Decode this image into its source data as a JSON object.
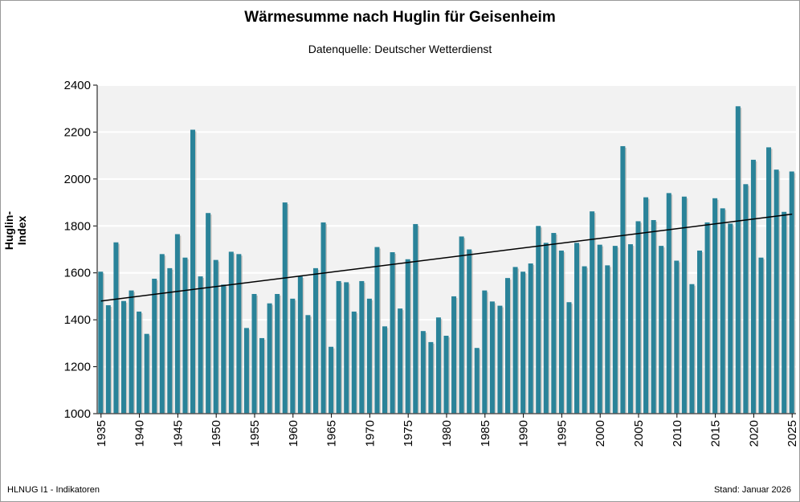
{
  "chart_data": {
    "type": "bar",
    "title": "Wärmesumme nach Huglin für Geisenheim",
    "subtitle": "Datenquelle:  Deutscher Wetterdienst",
    "ylabel": "Huglin-Index",
    "xlabel": "",
    "ylim": [
      1000,
      2400
    ],
    "yticks": [
      1000,
      1200,
      1400,
      1600,
      1800,
      2000,
      2200,
      2400
    ],
    "xticks": [
      1935,
      1940,
      1945,
      1950,
      1955,
      1960,
      1965,
      1970,
      1975,
      1980,
      1985,
      1990,
      1995,
      2000,
      2005,
      2010,
      2015,
      2020,
      2025
    ],
    "grid": true,
    "bar_color": "#2a8399",
    "background": "#f2f2f2",
    "years_start": 1935,
    "values": [
      1605,
      1462,
      1730,
      1480,
      1525,
      1435,
      1340,
      1575,
      1680,
      1620,
      1765,
      1665,
      2210,
      1585,
      1855,
      1655,
      1550,
      1690,
      1680,
      1365,
      1510,
      1322,
      1470,
      1510,
      1900,
      1490,
      1585,
      1420,
      1620,
      1815,
      1285,
      1565,
      1560,
      1435,
      1565,
      1490,
      1710,
      1372,
      1688,
      1448,
      1658,
      1808,
      1352,
      1305,
      1410,
      1332,
      1500,
      1755,
      1700,
      1280,
      1525,
      1478,
      1460,
      1578,
      1625,
      1605,
      1640,
      1800,
      1728,
      1770,
      1695,
      1475,
      1728,
      1628,
      1862,
      1720,
      1632,
      1715,
      2140,
      1722,
      1820,
      1922,
      1825,
      1715,
      1940,
      1652,
      1925,
      1552,
      1695,
      1815,
      1918,
      1875,
      1810,
      2310,
      1978,
      2082,
      1665,
      2135,
      2040,
      1860,
      2032
    ],
    "trend": {
      "type": "linear",
      "start": [
        1935,
        1480
      ],
      "end": [
        2025,
        1850
      ]
    }
  },
  "footer": {
    "left": "HLNUG I1 - Indikatoren",
    "right": "Stand: Januar 2026"
  }
}
